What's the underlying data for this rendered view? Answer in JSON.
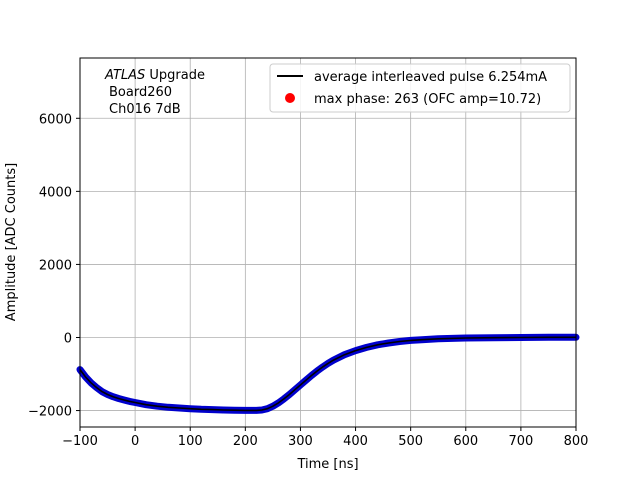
{
  "chart_data": {
    "type": "line",
    "title": "",
    "xlabel": "Time [ns]",
    "ylabel": "Amplitude [ADC Counts]",
    "xlim": [
      -100,
      800
    ],
    "ylim": [
      -2450,
      7650
    ],
    "xticks": [
      -100,
      0,
      100,
      200,
      300,
      400,
      500,
      600,
      700,
      800
    ],
    "yticks": [
      -2000,
      0,
      2000,
      4000,
      6000
    ],
    "grid": true,
    "legend_position": "top-right",
    "annotation": {
      "line1_italic": "ATLAS",
      "line1_rest": " Upgrade",
      "line2": "Board260",
      "line3": "Ch016 7dB"
    },
    "series": [
      {
        "name": "average interleaved pulse 6.254mA",
        "kind": "line",
        "color": "#000000",
        "x": [
          -100,
          -90,
          -80,
          -70,
          -60,
          -50,
          -40,
          -30,
          -20,
          -10,
          0,
          20,
          40,
          60,
          80,
          100,
          120,
          140,
          160,
          180,
          200,
          220,
          230,
          240,
          250,
          260,
          270,
          280,
          290,
          300,
          310,
          320,
          330,
          340,
          350,
          360,
          380,
          400,
          420,
          440,
          460,
          480,
          500,
          520,
          550,
          600,
          650,
          700,
          750,
          800
        ],
        "y": [
          -880,
          -1080,
          -1240,
          -1370,
          -1480,
          -1560,
          -1620,
          -1670,
          -1710,
          -1750,
          -1780,
          -1840,
          -1880,
          -1910,
          -1930,
          -1950,
          -1965,
          -1975,
          -1985,
          -1990,
          -1995,
          -1995,
          -1985,
          -1950,
          -1880,
          -1790,
          -1680,
          -1560,
          -1430,
          -1300,
          -1170,
          -1040,
          -920,
          -810,
          -710,
          -620,
          -470,
          -360,
          -270,
          -200,
          -150,
          -110,
          -80,
          -60,
          -35,
          -15,
          -5,
          0,
          5,
          5
        ]
      },
      {
        "name": "max phase: 263 (OFC amp=10.72)",
        "kind": "scatter",
        "color": "#ff0000",
        "x": [],
        "y": []
      }
    ],
    "band_color": "#0000cd"
  }
}
